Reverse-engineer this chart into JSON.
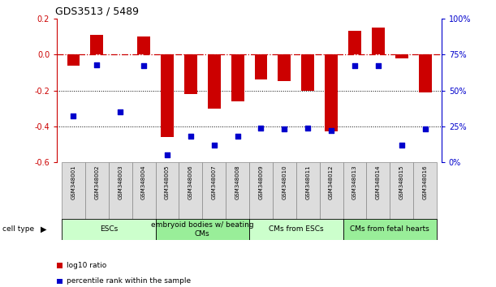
{
  "title": "GDS3513 / 5489",
  "samples": [
    "GSM348001",
    "GSM348002",
    "GSM348003",
    "GSM348004",
    "GSM348005",
    "GSM348006",
    "GSM348007",
    "GSM348008",
    "GSM348009",
    "GSM348010",
    "GSM348011",
    "GSM348012",
    "GSM348013",
    "GSM348014",
    "GSM348015",
    "GSM348016"
  ],
  "log10_ratio": [
    -0.06,
    0.11,
    0.0,
    0.1,
    -0.46,
    -0.22,
    -0.3,
    -0.26,
    -0.14,
    -0.15,
    -0.2,
    -0.43,
    0.13,
    0.15,
    -0.02,
    -0.21
  ],
  "percentile_rank": [
    32,
    68,
    35,
    67,
    5,
    18,
    12,
    18,
    24,
    23,
    24,
    22,
    67,
    67,
    12,
    23
  ],
  "bar_color": "#cc0000",
  "dot_color": "#0000cc",
  "ylim_left": [
    -0.6,
    0.2
  ],
  "ylim_right": [
    0,
    100
  ],
  "yticks_left": [
    -0.6,
    -0.4,
    -0.2,
    0.0,
    0.2
  ],
  "yticks_right": [
    0,
    25,
    50,
    75,
    100
  ],
  "cell_type_groups": [
    {
      "label": "ESCs",
      "start": 0,
      "end": 3,
      "color": "#ccffcc"
    },
    {
      "label": "embryoid bodies w/ beating\nCMs",
      "start": 4,
      "end": 7,
      "color": "#99ee99"
    },
    {
      "label": "CMs from ESCs",
      "start": 8,
      "end": 11,
      "color": "#ccffcc"
    },
    {
      "label": "CMs from fetal hearts",
      "start": 12,
      "end": 15,
      "color": "#99ee99"
    }
  ],
  "cell_type_label": "cell type",
  "legend_labels": [
    "log10 ratio",
    "percentile rank within the sample"
  ],
  "legend_colors": [
    "#cc0000",
    "#0000cc"
  ],
  "bar_width": 0.55
}
